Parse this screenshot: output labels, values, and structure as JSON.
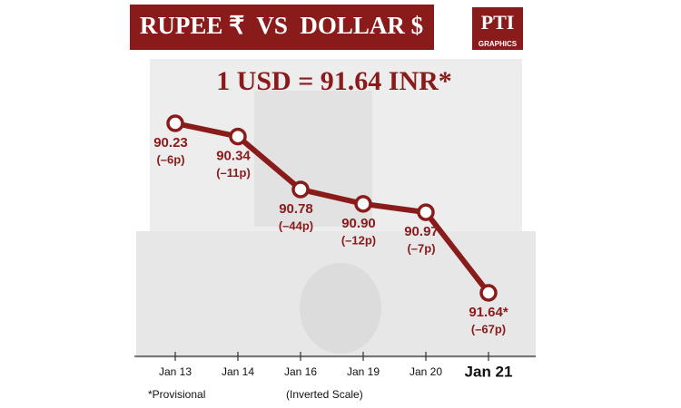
{
  "chart_data": {
    "type": "line",
    "title": "RUPEE ₹  VS  DOLLAR $",
    "headline": "1 USD = 91.64 INR*",
    "logo": "PTI",
    "logo_sub": "GRAPHICS",
    "categories": [
      "Jan 13",
      "Jan 14",
      "Jan 16",
      "Jan 19",
      "Jan 20",
      "Jan 21"
    ],
    "values": [
      90.23,
      90.34,
      90.78,
      90.9,
      90.97,
      91.64
    ],
    "value_labels": [
      "90.23",
      "90.34",
      "90.78",
      "90.90",
      "90.97",
      "91.64*"
    ],
    "change_labels": [
      "(–6p)",
      "(–11p)",
      "(–44p)",
      "(–12p)",
      "(–7p)",
      "(–67p)"
    ],
    "inverted": true,
    "color": "#8a1b1b",
    "footnote": "*Provisional",
    "scale_note": "(Inverted Scale)"
  }
}
